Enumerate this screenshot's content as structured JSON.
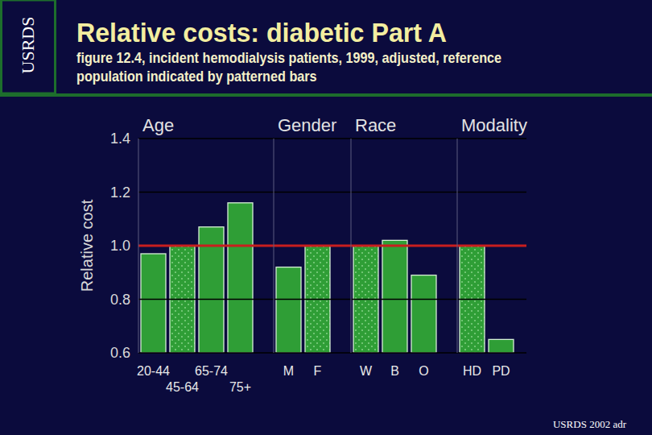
{
  "header": {
    "logo": "USRDS",
    "title": "Relative costs: diabetic Part A",
    "subtitle": "figure 12.4, incident hemodialysis patients, 1999, adjusted, reference population indicated by patterned bars"
  },
  "chart_data": [
    {
      "type": "bar",
      "title": "Age",
      "y_label": "Relative cost",
      "categories": [
        "20-44",
        "45-64",
        "65-74",
        "75+"
      ],
      "values": [
        0.97,
        1,
        1.07,
        1.16
      ],
      "reference": 1,
      "color": "#2f9e36",
      "ylim": [
        0.6,
        1.4
      ],
      "yticks": [
        0.6,
        0.8,
        {
          "value": 1,
          "label": "1.0"
        },
        1.2,
        1.4
      ],
      "grid": true
    },
    {
      "type": "bar",
      "title": "Gender",
      "categories": [
        "M",
        "F"
      ],
      "values": [
        0.92,
        1
      ],
      "reference": 1,
      "color": "#2f9e36",
      "ylim": [
        0.6,
        1.4
      ],
      "yticks": [
        0.6,
        0.8,
        {
          "value": 1,
          "label": "1.0"
        },
        1.2,
        1.4
      ],
      "grid": true,
      "tick_labels": "x"
    },
    {
      "type": "bar",
      "title": "Race",
      "categories": [
        "W",
        "B",
        "O"
      ],
      "values": [
        1,
        1.02,
        0.89
      ],
      "reference": 1,
      "color": "#2f9e36",
      "ylim": [
        0.6,
        1.4
      ],
      "yticks": [
        0.6,
        0.8,
        {
          "value": 1,
          "label": "1.0"
        },
        1.2,
        1.4
      ],
      "grid": true,
      "tick_labels": "x"
    },
    {
      "type": "bar",
      "title": "Modality",
      "categories": [
        "HD",
        "PD"
      ],
      "values": [
        1,
        0.65
      ],
      "reference": 1,
      "color": "#2f9e36",
      "ylim": [
        0.6,
        1.4
      ],
      "yticks": [
        0.6,
        0.8,
        {
          "value": 1,
          "label": "1.0"
        },
        1.2,
        1.4
      ],
      "grid": true,
      "tick_labels": "x"
    }
  ],
  "footer": {
    "source": "USRDS 2002 adr"
  }
}
